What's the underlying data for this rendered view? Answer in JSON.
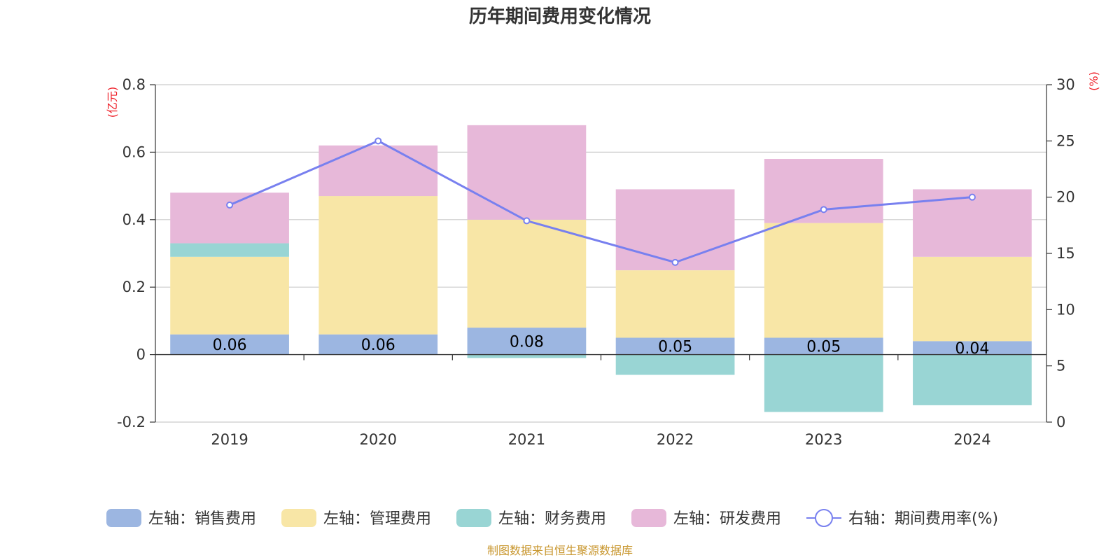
{
  "chart_data": {
    "type": "bar",
    "stacked": true,
    "title": "历年期间费用变化情况",
    "categories": [
      "2019",
      "2020",
      "2021",
      "2022",
      "2023",
      "2024"
    ],
    "left_axis": {
      "unit_label": "(亿元)",
      "ylim": [
        -0.2,
        0.8
      ],
      "ticks": [
        -0.2,
        0,
        0.2,
        0.4,
        0.6,
        0.8
      ],
      "tick_labels": [
        "-0.2",
        "0",
        "0.2",
        "0.4",
        "0.6",
        "0.8"
      ]
    },
    "right_axis": {
      "unit_label": "(%)",
      "ylim": [
        0,
        30
      ],
      "ticks": [
        0,
        5,
        10,
        15,
        20,
        25,
        30
      ],
      "tick_labels": [
        "0",
        "5",
        "10",
        "15",
        "20",
        "25",
        "30"
      ]
    },
    "series": [
      {
        "name": "左轴：销售费用",
        "axis": "left",
        "color": "#9cb6e1",
        "values": [
          0.06,
          0.06,
          0.08,
          0.05,
          0.05,
          0.04
        ],
        "labels": [
          "0.06",
          "0.06",
          "0.08",
          "0.05",
          "0.05",
          "0.04"
        ]
      },
      {
        "name": "左轴：管理费用",
        "axis": "left",
        "color": "#f8e6a6",
        "values": [
          0.23,
          0.41,
          0.32,
          0.2,
          0.34,
          0.25
        ]
      },
      {
        "name": "左轴：财务费用",
        "axis": "left",
        "color": "#99d5d4",
        "values": [
          0.04,
          0.0,
          -0.01,
          -0.06,
          -0.17,
          -0.15
        ]
      },
      {
        "name": "左轴：研发费用",
        "axis": "left",
        "color": "#e7b8d9",
        "values": [
          0.15,
          0.15,
          0.28,
          0.24,
          0.19,
          0.2
        ]
      },
      {
        "name": "右轴：期间费用率(%)",
        "axis": "right",
        "type": "line",
        "color": "#7880ef",
        "values": [
          19.3,
          25.0,
          17.9,
          14.2,
          18.9,
          20.0
        ]
      }
    ],
    "source": "制图数据来自恒生聚源数据库"
  }
}
